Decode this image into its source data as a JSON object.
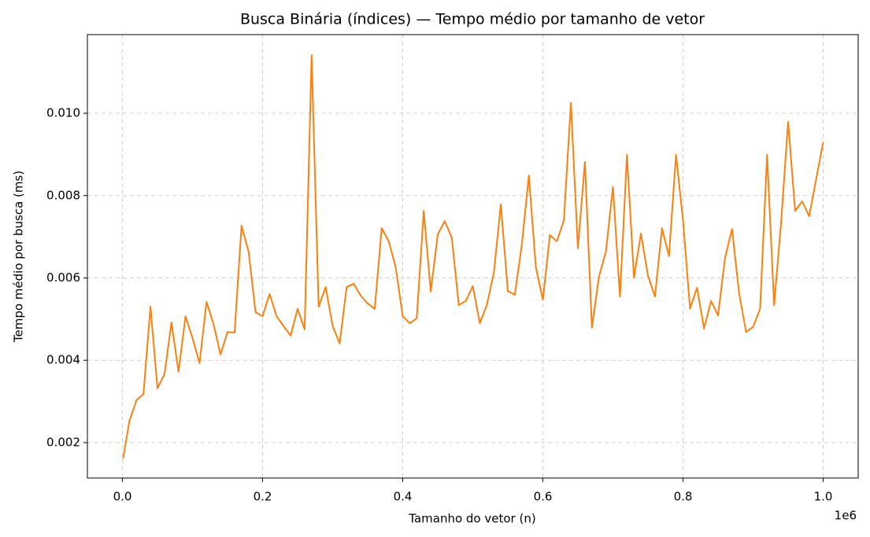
{
  "chart_data": {
    "type": "line",
    "title": "Busca Binária (índices) — Tempo médio por tamanho de vetor",
    "x_label": "Tamanho do vetor (n)",
    "y_label": "Tempo médio por busca (ms)",
    "x_offset_label": "1e6",
    "grid": true,
    "x": [
      1000,
      10000,
      20000,
      30000,
      40000,
      50000,
      60000,
      70000,
      80000,
      90000,
      100000,
      110000,
      120000,
      130000,
      140000,
      150000,
      160000,
      170000,
      180000,
      190000,
      200000,
      210000,
      220000,
      230000,
      240000,
      250000,
      260000,
      270000,
      280000,
      290000,
      300000,
      310000,
      320000,
      330000,
      340000,
      350000,
      360000,
      370000,
      380000,
      390000,
      400000,
      410000,
      420000,
      430000,
      440000,
      450000,
      460000,
      470000,
      480000,
      490000,
      500000,
      510000,
      520000,
      530000,
      540000,
      550000,
      560000,
      570000,
      580000,
      590000,
      600000,
      610000,
      620000,
      630000,
      640000,
      650000,
      660000,
      670000,
      680000,
      690000,
      700000,
      710000,
      720000,
      730000,
      740000,
      750000,
      760000,
      770000,
      780000,
      790000,
      800000,
      810000,
      820000,
      830000,
      840000,
      850000,
      860000,
      870000,
      880000,
      890000,
      900000,
      910000,
      920000,
      930000,
      940000,
      950000,
      960000,
      970000,
      980000,
      990000,
      1000000
    ],
    "series": [
      {
        "color": "#ff7f0e",
        "values": [
          0.00162,
          0.00253,
          0.00303,
          0.00318,
          0.0053,
          0.00332,
          0.00366,
          0.00492,
          0.00372,
          0.00507,
          0.00454,
          0.00393,
          0.00542,
          0.00488,
          0.00414,
          0.00469,
          0.00467,
          0.00727,
          0.00664,
          0.00517,
          0.00507,
          0.00561,
          0.00507,
          0.00483,
          0.0046,
          0.00525,
          0.00475,
          0.01141,
          0.0053,
          0.00578,
          0.00483,
          0.00441,
          0.00578,
          0.00586,
          0.00557,
          0.00538,
          0.00525,
          0.00721,
          0.00689,
          0.00626,
          0.00507,
          0.0049,
          0.00502,
          0.00763,
          0.00567,
          0.00706,
          0.00738,
          0.00698,
          0.00534,
          0.00544,
          0.0058,
          0.0049,
          0.00534,
          0.00612,
          0.00779,
          0.00568,
          0.00559,
          0.00681,
          0.00849,
          0.00626,
          0.00547,
          0.00704,
          0.00689,
          0.0074,
          0.01025,
          0.00672,
          0.00882,
          0.00479,
          0.00603,
          0.00664,
          0.00821,
          0.00555,
          0.00899,
          0.00601,
          0.00708,
          0.00605,
          0.00555,
          0.00721,
          0.00653,
          0.00899,
          0.0074,
          0.00526,
          0.00576,
          0.00477,
          0.00544,
          0.00509,
          0.00649,
          0.00719,
          0.00563,
          0.00469,
          0.00481,
          0.00525,
          0.00899,
          0.00534,
          0.00735,
          0.00979,
          0.00763,
          0.00786,
          0.0075,
          0.0084,
          0.00929
        ]
      }
    ],
    "xlim": [
      -50000,
      1050000
    ],
    "xticks": [
      {
        "value": 0,
        "label": "0.0"
      },
      {
        "value": 200000,
        "label": "0.2"
      },
      {
        "value": 400000,
        "label": "0.4"
      },
      {
        "value": 600000,
        "label": "0.6"
      },
      {
        "value": 800000,
        "label": "0.8"
      },
      {
        "value": 1000000,
        "label": "1.0"
      }
    ],
    "ylim": [
      0.00114,
      0.01191
    ],
    "yticks": [
      0.002,
      0.004,
      0.006,
      0.008,
      {
        "value": 0.01,
        "label": "0.010"
      }
    ]
  }
}
